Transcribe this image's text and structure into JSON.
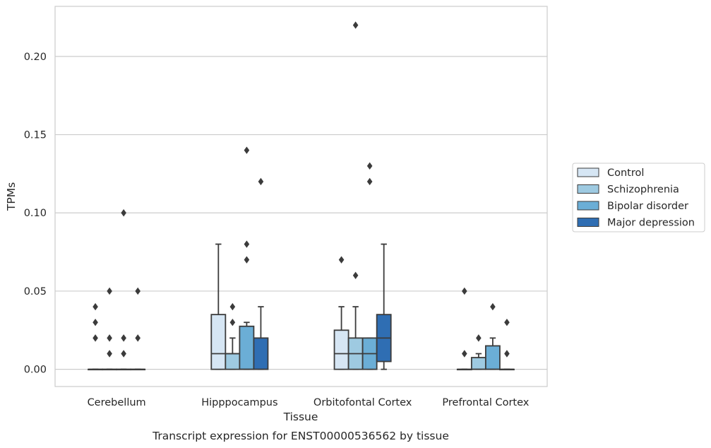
{
  "caption": "Transcript expression for ENST00000536562 by tissue",
  "chart_data": {
    "type": "box",
    "xlabel": "Tissue",
    "ylabel": "TPMs",
    "ylim": [
      -0.011,
      0.232
    ],
    "yticks": [
      0.0,
      0.05,
      0.1,
      0.15,
      0.2
    ],
    "ytick_labels": [
      "0.00",
      "0.05",
      "0.10",
      "0.15",
      "0.20"
    ],
    "grid": "horizontal",
    "legend_position": "right",
    "categories": [
      "Cerebellum",
      "Hipppocampus",
      "Orbitofontal Cortex",
      "Prefrontal Cortex"
    ],
    "series": [
      {
        "name": "Control",
        "color": "#d6e6f4",
        "boxes": [
          {
            "q1": 0.0,
            "median": 0.0,
            "q3": 0.0,
            "whisker_low": 0.0,
            "whisker_high": 0.0,
            "outliers": [
              0.04,
              0.03,
              0.02
            ]
          },
          {
            "q1": 0.0,
            "median": 0.01,
            "q3": 0.035,
            "whisker_low": 0.0,
            "whisker_high": 0.08,
            "outliers": []
          },
          {
            "q1": 0.0,
            "median": 0.01,
            "q3": 0.025,
            "whisker_low": 0.0,
            "whisker_high": 0.04,
            "outliers": [
              0.07
            ]
          },
          {
            "q1": 0.0,
            "median": 0.0,
            "q3": 0.0,
            "whisker_low": 0.0,
            "whisker_high": 0.0,
            "outliers": [
              0.05,
              0.01
            ]
          }
        ]
      },
      {
        "name": "Schizophrenia",
        "color": "#9ecae1",
        "boxes": [
          {
            "q1": 0.0,
            "median": 0.0,
            "q3": 0.0,
            "whisker_low": 0.0,
            "whisker_high": 0.0,
            "outliers": [
              0.05,
              0.02,
              0.01
            ]
          },
          {
            "q1": 0.0,
            "median": 0.01,
            "q3": 0.01,
            "whisker_low": 0.0,
            "whisker_high": 0.02,
            "outliers": [
              0.04,
              0.03
            ]
          },
          {
            "q1": 0.0,
            "median": 0.01,
            "q3": 0.02,
            "whisker_low": 0.0,
            "whisker_high": 0.04,
            "outliers": [
              0.22,
              0.06
            ]
          },
          {
            "q1": 0.0,
            "median": 0.0,
            "q3": 0.0075,
            "whisker_low": 0.0,
            "whisker_high": 0.01,
            "outliers": [
              0.02
            ]
          }
        ]
      },
      {
        "name": "Bipolar disorder",
        "color": "#6baed6",
        "boxes": [
          {
            "q1": 0.0,
            "median": 0.0,
            "q3": 0.0,
            "whisker_low": 0.0,
            "whisker_high": 0.0,
            "outliers": [
              0.1,
              0.02,
              0.01
            ]
          },
          {
            "q1": 0.0,
            "median": 0.0,
            "q3": 0.0275,
            "whisker_low": 0.0,
            "whisker_high": 0.03,
            "outliers": [
              0.14,
              0.08,
              0.07
            ]
          },
          {
            "q1": 0.0,
            "median": 0.01,
            "q3": 0.02,
            "whisker_low": 0.0,
            "whisker_high": 0.02,
            "outliers": [
              0.13,
              0.12
            ]
          },
          {
            "q1": 0.0,
            "median": 0.0,
            "q3": 0.015,
            "whisker_low": 0.0,
            "whisker_high": 0.02,
            "outliers": [
              0.04
            ]
          }
        ]
      },
      {
        "name": "Major depression",
        "color": "#2f6eb3",
        "boxes": [
          {
            "q1": 0.0,
            "median": 0.0,
            "q3": 0.0,
            "whisker_low": 0.0,
            "whisker_high": 0.0,
            "outliers": [
              0.05,
              0.02
            ]
          },
          {
            "q1": 0.0,
            "median": 0.0,
            "q3": 0.02,
            "whisker_low": 0.0,
            "whisker_high": 0.04,
            "outliers": [
              0.12
            ]
          },
          {
            "q1": 0.005,
            "median": 0.02,
            "q3": 0.035,
            "whisker_low": 0.0,
            "whisker_high": 0.08,
            "outliers": []
          },
          {
            "q1": 0.0,
            "median": 0.0,
            "q3": 0.0,
            "whisker_low": 0.0,
            "whisker_high": 0.0,
            "outliers": [
              0.03,
              0.01
            ]
          }
        ]
      }
    ]
  }
}
